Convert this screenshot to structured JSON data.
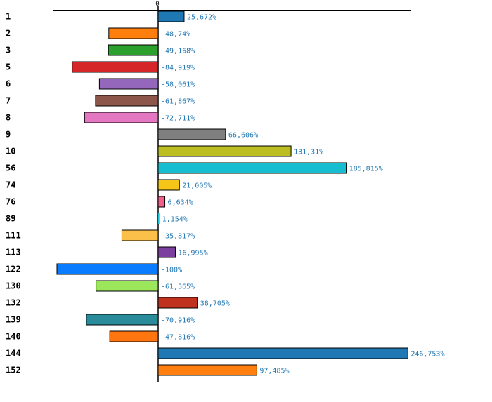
{
  "chart_data": {
    "type": "bar",
    "orientation": "horizontal",
    "categories": [
      "1",
      "2",
      "3",
      "5",
      "6",
      "7",
      "8",
      "9",
      "10",
      "56",
      "74",
      "76",
      "89",
      "111",
      "113",
      "122",
      "130",
      "132",
      "139",
      "140",
      "144",
      "152"
    ],
    "values": [
      25.672,
      -48.74,
      -49.168,
      -84.919,
      -58.061,
      -61.867,
      -72.711,
      66.606,
      131.31,
      185.815,
      21.005,
      6.634,
      1.154,
      -35.817,
      16.995,
      -100,
      -61.365,
      38.705,
      -70.916,
      -47.816,
      246.753,
      97.485
    ],
    "value_labels": [
      "25,672%",
      "-48,74%",
      "-49,168%",
      "-84,919%",
      "-58,061%",
      "-61,867%",
      "-72,711%",
      "66,606%",
      "131,31%",
      "185,815%",
      "21,005%",
      "6,634%",
      "1,154%",
      "-35,817%",
      "16,995%",
      "-100%",
      "-61,365%",
      "38,705%",
      "-70,916%",
      "-47,816%",
      "246,753%",
      "97,485%"
    ],
    "colors": [
      "#1f77b4",
      "#ff7f0e",
      "#2ca02c",
      "#d62728",
      "#9467bd",
      "#8c564b",
      "#e377c2",
      "#7f7f7f",
      "#bcbd22",
      "#17becf",
      "#f5c518",
      "#f25f8c",
      "#17becf",
      "#fbc04a",
      "#7b3fa0",
      "#0a7cff",
      "#9be65a",
      "#c0321e",
      "#2a8c9a",
      "#ff7510",
      "#1f77b4",
      "#ff7f0e"
    ],
    "zero_label": "0",
    "xlim": [
      -104,
      250
    ],
    "title": "",
    "xlabel": "",
    "ylabel": ""
  }
}
